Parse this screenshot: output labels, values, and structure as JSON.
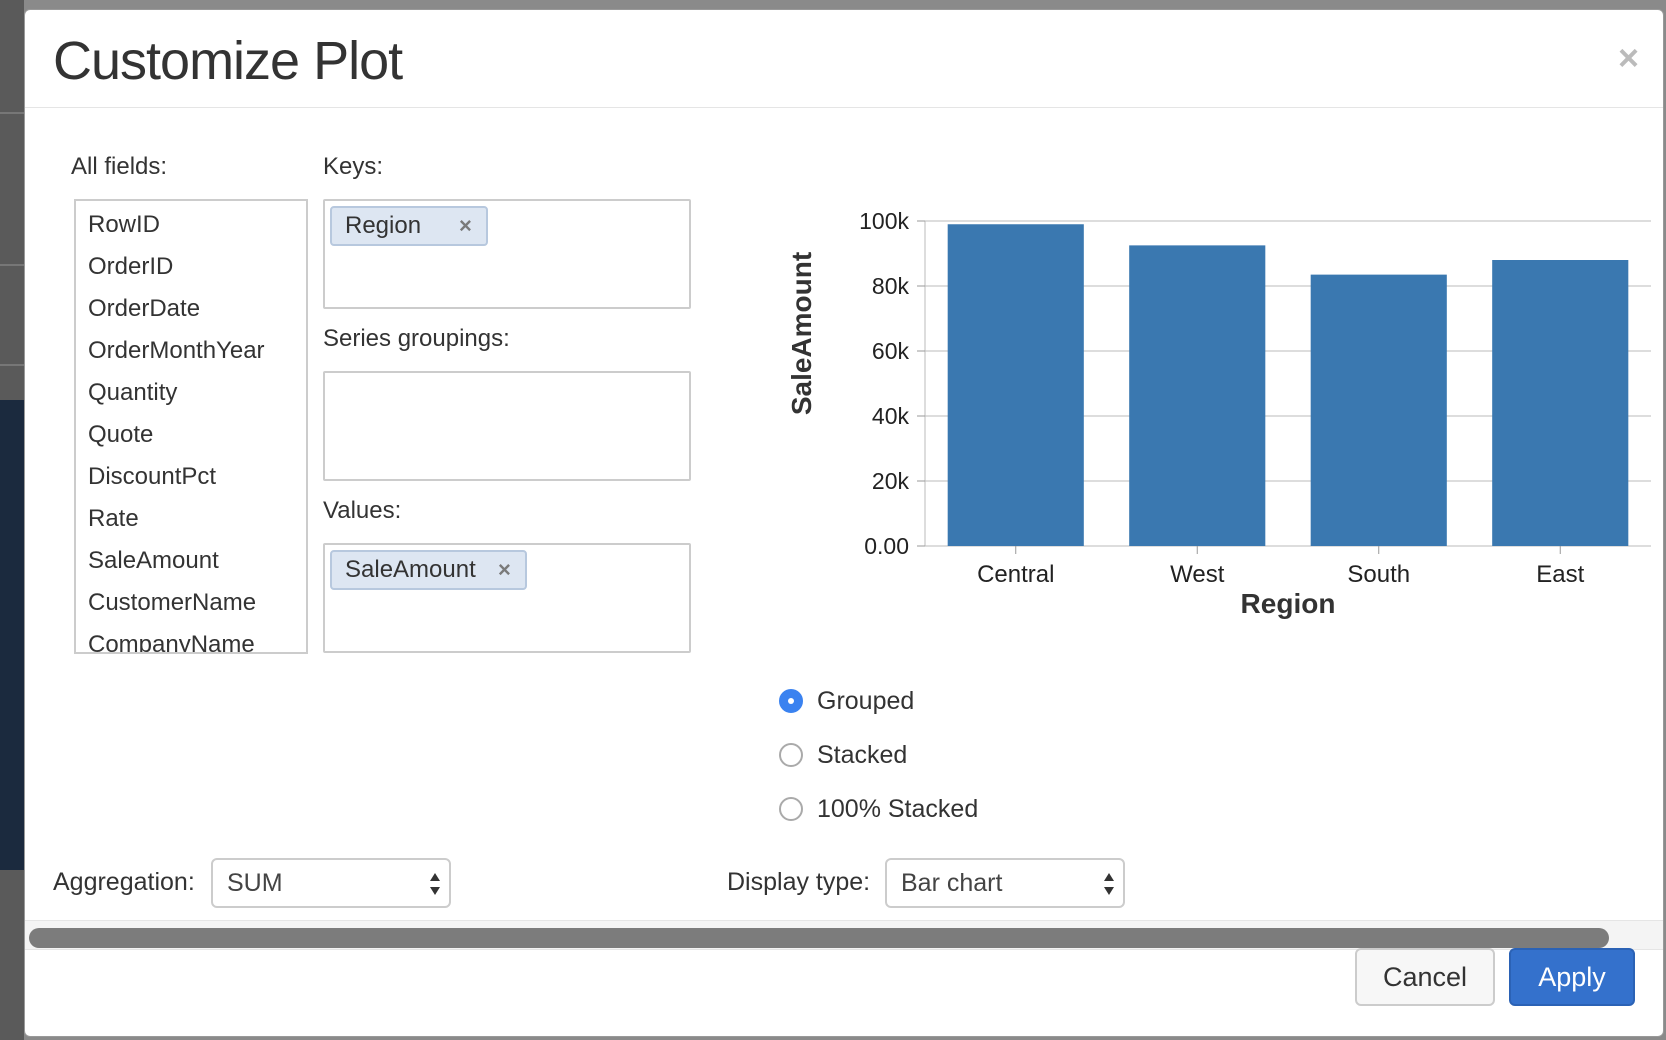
{
  "dialog": {
    "title": "Customize Plot",
    "close_symbol": "×"
  },
  "all_fields": {
    "label": "All fields:",
    "items": [
      "RowID",
      "OrderID",
      "OrderDate",
      "OrderMonthYear",
      "Quantity",
      "Quote",
      "DiscountPct",
      "Rate",
      "SaleAmount",
      "CustomerName",
      "CompanyName"
    ]
  },
  "keys": {
    "label": "Keys:",
    "chips": [
      {
        "text": "Region",
        "remove": "×"
      }
    ]
  },
  "series_groupings": {
    "label": "Series groupings:",
    "chips": []
  },
  "values": {
    "label": "Values:",
    "chips": [
      {
        "text": "SaleAmount",
        "remove": "×"
      }
    ]
  },
  "chart_data": {
    "type": "bar",
    "categories": [
      "Central",
      "West",
      "South",
      "East"
    ],
    "values": [
      99000,
      92500,
      83500,
      88000
    ],
    "xlabel": "Region",
    "ylabel": "SaleAmount",
    "ylim": [
      0,
      100000
    ],
    "yticks": [
      0,
      20000,
      40000,
      60000,
      80000,
      100000
    ],
    "ytick_labels": [
      "0.00",
      "20k",
      "40k",
      "60k",
      "80k",
      "100k"
    ],
    "bar_color": "#3a78b0",
    "grid": true
  },
  "stacking": {
    "options": [
      {
        "label": "Grouped",
        "checked": true
      },
      {
        "label": "Stacked",
        "checked": false
      },
      {
        "label": "100% Stacked",
        "checked": false
      }
    ]
  },
  "aggregation": {
    "label": "Aggregation:",
    "value": "SUM"
  },
  "display_type": {
    "label": "Display type:",
    "value": "Bar chart"
  },
  "footer": {
    "cancel_label": "Cancel",
    "apply_label": "Apply"
  },
  "colors": {
    "accent": "#3471cc",
    "radio_accent": "#3a82f0"
  }
}
